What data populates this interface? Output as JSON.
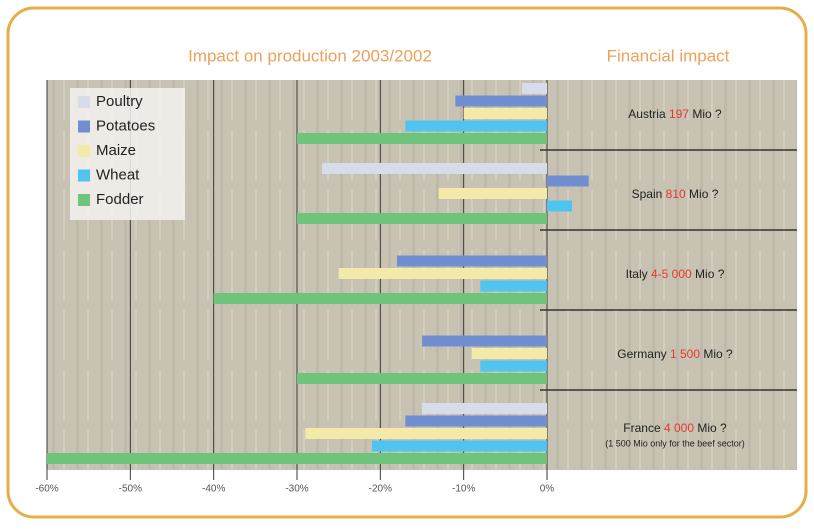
{
  "chart_data": {
    "type": "hbar",
    "title": "Impact on production 2003/2002",
    "side_title": "Financial impact",
    "categories": [
      "Austria",
      "Spain",
      "Italy",
      "Germany",
      "France"
    ],
    "series": [
      {
        "name": "Poultry",
        "color": "#d6dce8",
        "values": [
          -3,
          -27,
          null,
          null,
          -15
        ]
      },
      {
        "name": "Potatoes",
        "color": "#6f8fd0",
        "values": [
          -11,
          5,
          -18,
          -15,
          -17
        ]
      },
      {
        "name": "Maize",
        "color": "#f3e9a8",
        "values": [
          -10,
          -13,
          -25,
          -9,
          -29
        ]
      },
      {
        "name": "Wheat",
        "color": "#4fc4f0",
        "values": [
          -17,
          3,
          -8,
          -8,
          -21
        ]
      },
      {
        "name": "Fodder",
        "color": "#6fc47c",
        "values": [
          -30,
          -30,
          -40,
          -30,
          -60
        ]
      }
    ],
    "financial_amounts": [
      "197",
      "810",
      "4-5 000",
      "1 500",
      "4 000"
    ],
    "financial_unit": "Mio ?",
    "financial_note": "(1 500 Mio only for the beef sector)",
    "xlim": [
      -60,
      0
    ],
    "xticks": [
      {
        "value": -60,
        "label": "-60%"
      },
      {
        "value": -50,
        "label": "-50%"
      },
      {
        "value": -40,
        "label": "-40%"
      },
      {
        "value": -30,
        "label": "-30%"
      },
      {
        "value": -20,
        "label": "-20%"
      },
      {
        "value": -10,
        "label": "-10%"
      },
      {
        "value": 0,
        "label": "0%"
      }
    ],
    "grid": true,
    "legend": "top-left"
  }
}
